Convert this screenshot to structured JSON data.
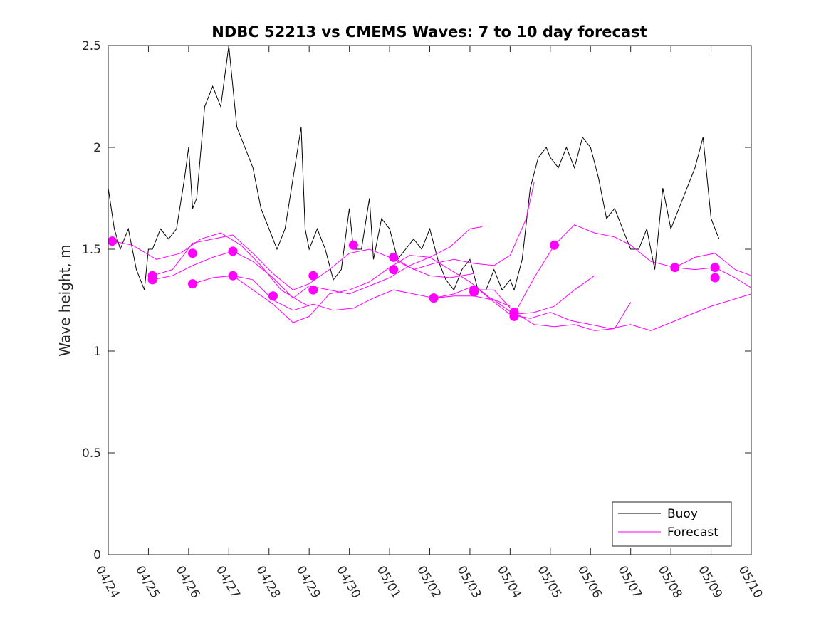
{
  "chart_data": {
    "type": "line",
    "title": "NDBC 52213 vs CMEMS Waves: 7 to 10 day forecast",
    "xlabel": "",
    "ylabel": "Wave height, m",
    "ylim": [
      0,
      2.5
    ],
    "yticks": [
      0,
      0.5,
      1,
      1.5,
      2,
      2.5
    ],
    "ytick_labels": [
      "0",
      "0.5",
      "1",
      "1.5",
      "2",
      "2.5"
    ],
    "xlim_days": [
      0,
      16
    ],
    "xticks_days": [
      0,
      1,
      2,
      3,
      4,
      5,
      6,
      7,
      8,
      9,
      10,
      11,
      12,
      13,
      14,
      15,
      16
    ],
    "xtick_labels": [
      "04/24",
      "04/25",
      "04/26",
      "04/27",
      "04/28",
      "04/29",
      "04/30",
      "05/01",
      "05/02",
      "05/03",
      "05/04",
      "05/05",
      "05/06",
      "05/07",
      "05/08",
      "05/09",
      "05/10"
    ],
    "grid": false,
    "legend_position": "bottom-right",
    "legend": [
      {
        "name": "Buoy",
        "color": "#000000"
      },
      {
        "name": "Forecast",
        "color": "#ff00ff"
      }
    ],
    "series": [
      {
        "name": "Buoy",
        "color": "#000000",
        "x": [
          0,
          0.15,
          0.3,
          0.5,
          0.7,
          0.9,
          1.0,
          1.1,
          1.3,
          1.5,
          1.7,
          1.9,
          2.0,
          2.1,
          2.2,
          2.4,
          2.6,
          2.8,
          3.0,
          3.2,
          3.4,
          3.6,
          3.8,
          4.0,
          4.2,
          4.4,
          4.6,
          4.8,
          4.9,
          5.0,
          5.2,
          5.4,
          5.6,
          5.8,
          6.0,
          6.1,
          6.3,
          6.5,
          6.6,
          6.8,
          7.0,
          7.2,
          7.4,
          7.6,
          7.8,
          8.0,
          8.2,
          8.4,
          8.6,
          8.8,
          9.0,
          9.2,
          9.4,
          9.6,
          9.8,
          10.0,
          10.1,
          10.3,
          10.5,
          10.7,
          10.9,
          11.0,
          11.2,
          11.4,
          11.6,
          11.8,
          12.0,
          12.2,
          12.4,
          12.6,
          12.8,
          13.0,
          13.2,
          13.4,
          13.6,
          13.8,
          14.0,
          14.2,
          14.4,
          14.6,
          14.8,
          15.0,
          15.2
        ],
        "y": [
          1.8,
          1.6,
          1.5,
          1.6,
          1.4,
          1.3,
          1.5,
          1.5,
          1.6,
          1.55,
          1.6,
          1.85,
          2.0,
          1.7,
          1.75,
          2.2,
          2.3,
          2.2,
          2.5,
          2.1,
          2.0,
          1.9,
          1.7,
          1.6,
          1.5,
          1.6,
          1.85,
          2.1,
          1.6,
          1.5,
          1.6,
          1.5,
          1.35,
          1.4,
          1.7,
          1.5,
          1.5,
          1.75,
          1.45,
          1.65,
          1.6,
          1.45,
          1.5,
          1.55,
          1.5,
          1.6,
          1.45,
          1.35,
          1.3,
          1.4,
          1.45,
          1.3,
          1.3,
          1.4,
          1.3,
          1.35,
          1.3,
          1.45,
          1.8,
          1.95,
          2.0,
          1.95,
          1.9,
          2.0,
          1.9,
          2.05,
          2.0,
          1.85,
          1.65,
          1.7,
          1.6,
          1.5,
          1.5,
          1.6,
          1.4,
          1.8,
          1.6,
          1.7,
          1.8,
          1.9,
          2.05,
          1.65,
          1.55
        ]
      },
      {
        "name": "",
        "color": "#ff00ff",
        "x": [
          0.1,
          0.6,
          1.2,
          1.8,
          2.3,
          2.8,
          3.3,
          3.8,
          4.3,
          4.8,
          5.0
        ],
        "y": [
          1.54,
          1.52,
          1.45,
          1.48,
          1.55,
          1.58,
          1.52,
          1.42,
          1.3,
          1.24,
          1.22
        ]
      },
      {
        "name": "",
        "color": "#ff00ff",
        "x": [
          1.1,
          1.6,
          2.1,
          2.6,
          3.1,
          3.6,
          4.1,
          4.6,
          5.0,
          5.5,
          6.0,
          6.5,
          7.0,
          7.5,
          8.0,
          8.5,
          9.1
        ],
        "y": [
          1.37,
          1.4,
          1.53,
          1.55,
          1.57,
          1.48,
          1.38,
          1.3,
          1.33,
          1.4,
          1.48,
          1.5,
          1.46,
          1.41,
          1.37,
          1.36,
          1.38
        ]
      },
      {
        "name": "",
        "color": "#ff00ff",
        "x": [
          1.1,
          1.6,
          2.1,
          2.6,
          3.1,
          3.6,
          4.1,
          4.6,
          5.0,
          5.5,
          6.0,
          6.5,
          7.0,
          7.5,
          8.0,
          8.5,
          9.0,
          9.3
        ],
        "y": [
          1.35,
          1.37,
          1.42,
          1.46,
          1.49,
          1.44,
          1.36,
          1.26,
          1.32,
          1.3,
          1.28,
          1.32,
          1.36,
          1.42,
          1.46,
          1.51,
          1.6,
          1.61
        ]
      },
      {
        "name": "",
        "color": "#ff00ff",
        "x": [
          2.1,
          2.6,
          3.1,
          3.6,
          4.1,
          4.6,
          5.0,
          5.5,
          6.0,
          6.5,
          7.0,
          7.5,
          8.0,
          8.5,
          9.0,
          9.5,
          10.0
        ],
        "y": [
          1.33,
          1.36,
          1.37,
          1.3,
          1.23,
          1.14,
          1.17,
          1.28,
          1.3,
          1.34,
          1.41,
          1.47,
          1.46,
          1.4,
          1.34,
          1.26,
          1.22
        ]
      },
      {
        "name": "",
        "color": "#ff00ff",
        "x": [
          3.1,
          3.6,
          4.1,
          4.6,
          5.1,
          5.6,
          6.1,
          6.6,
          7.1,
          7.6,
          8.1,
          8.6,
          9.1,
          9.6,
          10.0,
          10.5,
          11.0,
          11.5,
          12.0,
          12.5,
          13.0,
          13.5,
          14.0,
          14.5,
          15.0,
          15.5,
          16.0
        ],
        "y": [
          1.37,
          1.35,
          1.25,
          1.2,
          1.23,
          1.2,
          1.21,
          1.26,
          1.3,
          1.28,
          1.26,
          1.28,
          1.32,
          1.24,
          1.18,
          1.16,
          1.19,
          1.15,
          1.13,
          1.11,
          1.13,
          1.1,
          1.14,
          1.18,
          1.22,
          1.25,
          1.28
        ]
      },
      {
        "name": "",
        "color": "#ff00ff",
        "x": [
          7.1,
          7.6,
          8.1,
          8.6,
          9.1,
          9.6,
          10.0,
          10.4,
          10.6
        ],
        "y": [
          1.46,
          1.4,
          1.43,
          1.45,
          1.43,
          1.42,
          1.47,
          1.65,
          1.83
        ]
      },
      {
        "name": "",
        "color": "#ff00ff",
        "x": [
          8.1,
          8.6,
          9.1,
          9.6,
          10.1,
          10.6,
          11.1,
          11.6,
          12.1
        ],
        "y": [
          1.26,
          1.27,
          1.27,
          1.25,
          1.18,
          1.19,
          1.22,
          1.3,
          1.37
        ]
      },
      {
        "name": "",
        "color": "#ff00ff",
        "x": [
          9.1,
          9.6,
          10.1,
          10.6,
          11.1,
          11.6,
          12.1,
          12.6,
          13.0
        ],
        "y": [
          1.3,
          1.3,
          1.19,
          1.13,
          1.12,
          1.13,
          1.1,
          1.11,
          1.24
        ]
      },
      {
        "name": "",
        "color": "#ff00ff",
        "x": [
          10.1,
          10.6,
          11.1,
          11.6,
          12.1,
          12.6,
          13.0,
          13.5,
          14.1,
          14.6,
          15.1,
          15.6,
          16.0
        ],
        "y": [
          1.18,
          1.36,
          1.52,
          1.62,
          1.58,
          1.56,
          1.52,
          1.44,
          1.41,
          1.46,
          1.48,
          1.4,
          1.37
        ]
      },
      {
        "name": "",
        "color": "#ff00ff",
        "x": [
          14.1,
          14.6,
          15.1,
          15.6,
          16.0
        ],
        "y": [
          1.41,
          1.4,
          1.41,
          1.36,
          1.31
        ]
      }
    ],
    "forecast_markers": {
      "color": "#ff00ff",
      "x": [
        0.1,
        1.1,
        1.1,
        2.1,
        2.1,
        3.1,
        3.1,
        4.1,
        5.1,
        5.1,
        6.1,
        7.1,
        7.1,
        8.1,
        9.1,
        9.1,
        10.1,
        10.1,
        11.1,
        14.1,
        15.1,
        15.1
      ],
      "y": [
        1.54,
        1.37,
        1.35,
        1.48,
        1.33,
        1.49,
        1.37,
        1.27,
        1.37,
        1.3,
        1.52,
        1.46,
        1.4,
        1.26,
        1.3,
        1.29,
        1.19,
        1.17,
        1.52,
        1.41,
        1.41,
        1.36
      ]
    }
  }
}
